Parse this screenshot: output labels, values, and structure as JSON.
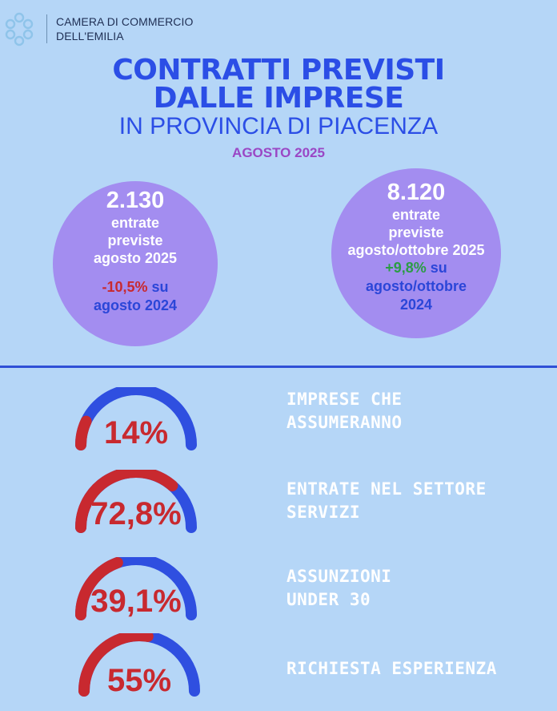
{
  "header": {
    "org_line1": "CAMERA DI COMMERCIO",
    "org_line2": "DELL'EMILIA",
    "logo_icon": "chamber-logo-icon"
  },
  "title": {
    "line1": "CONTRATTI PREVISTI",
    "line2": "DALLE IMPRESE",
    "line3": "IN PROVINCIA DI PIACENZA",
    "period": "AGOSTO 2025"
  },
  "stats": [
    {
      "number": "2.130",
      "lines": [
        "entrate",
        "previste",
        "agosto 2025"
      ],
      "delta_value": "-10,5%",
      "delta_rest": " su",
      "delta_lines": [
        "agosto 2024"
      ]
    },
    {
      "number": "8.120",
      "lines": [
        "entrate",
        "previste",
        "agosto/ottobre 2025"
      ],
      "delta_value": "+9,8%",
      "delta_rest": " su",
      "delta_lines": [
        "agosto/ottobre",
        "2024"
      ]
    }
  ],
  "gauges": [
    {
      "value_text": "14%",
      "fraction": 0.14,
      "label_lines": [
        "IMPRESE CHE",
        "ASSUMERANNO"
      ]
    },
    {
      "value_text": "72,8%",
      "fraction": 0.728,
      "label_lines": [
        "ENTRATE NEL SETTORE",
        "SERVIZI"
      ]
    },
    {
      "value_text": "39,1%",
      "fraction": 0.391,
      "label_lines": [
        "ASSUNZIONI",
        "UNDER 30"
      ]
    },
    {
      "value_text": "55%",
      "fraction": 0.55,
      "label_lines": [
        "RICHIESTA ESPERIENZA"
      ]
    }
  ],
  "colors": {
    "background": "#b5d6f7",
    "title_blue": "#2b4ee6",
    "circle_purple": "#a38df0",
    "gauge_red": "#c8292f",
    "gauge_blue": "#2f4fe0",
    "negative": "#c8292f",
    "positive": "#2c9c45"
  }
}
